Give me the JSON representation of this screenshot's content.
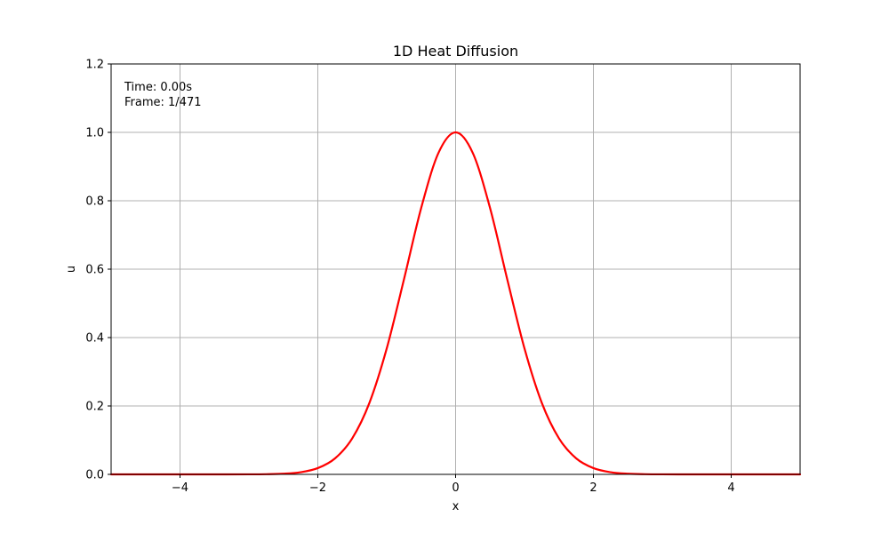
{
  "chart_data": {
    "type": "line",
    "title": "1D Heat Diffusion",
    "xlabel": "x",
    "ylabel": "u",
    "xlim": [
      -5,
      5
    ],
    "ylim": [
      0,
      1.2
    ],
    "x_ticks": [
      -4,
      -2,
      0,
      2,
      4
    ],
    "x_tick_labels": [
      "−4",
      "−2",
      "0",
      "2",
      "4"
    ],
    "y_ticks": [
      0.0,
      0.2,
      0.4,
      0.6,
      0.8,
      1.0,
      1.2
    ],
    "y_tick_labels": [
      "0.0",
      "0.2",
      "0.4",
      "0.6",
      "0.8",
      "1.0",
      "1.2"
    ],
    "grid": true,
    "annotations": {
      "time": "Time: 0.00s",
      "frame": "Frame: 1/471"
    },
    "series": [
      {
        "color": "#ff0000",
        "x": [
          -5.0,
          -4.5,
          -4.0,
          -3.5,
          -3.0,
          -2.75,
          -2.5,
          -2.25,
          -2.0,
          -1.75,
          -1.5,
          -1.25,
          -1.0,
          -0.75,
          -0.5,
          -0.25,
          0.0,
          0.25,
          0.5,
          0.75,
          1.0,
          1.25,
          1.5,
          1.75,
          2.0,
          2.25,
          2.5,
          2.75,
          3.0,
          3.5,
          4.0,
          4.5,
          5.0
        ],
        "y": [
          0.0,
          0.0,
          0.0,
          0.0,
          0.0001,
          0.0005,
          0.0019,
          0.0063,
          0.0183,
          0.0468,
          0.1054,
          0.2096,
          0.3679,
          0.5698,
          0.7788,
          0.9394,
          1.0,
          0.9394,
          0.7788,
          0.5698,
          0.3679,
          0.2096,
          0.1054,
          0.0468,
          0.0183,
          0.0063,
          0.0019,
          0.0005,
          0.0001,
          0.0,
          0.0,
          0.0,
          0.0
        ]
      }
    ]
  }
}
